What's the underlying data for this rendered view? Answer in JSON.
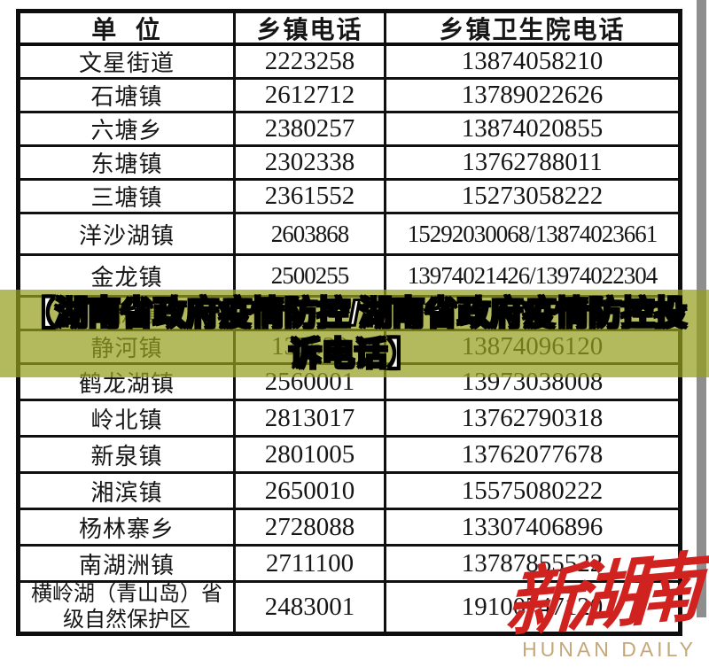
{
  "colors": {
    "overlay-bg": "rgba(150,158,30,0.72)",
    "logo-red": "#d0221f",
    "logo-gold": "#c5a878",
    "grey-strip": "#8e8e8e"
  },
  "table": {
    "headers": [
      "单  位",
      "乡镇电话",
      "乡镇卫生院电话"
    ],
    "rows": [
      {
        "unit": "文星街道",
        "town_phone": "2223258",
        "health_phone": "13874058210"
      },
      {
        "unit": "石塘镇",
        "town_phone": "2612712",
        "health_phone": "13789022626"
      },
      {
        "unit": "六塘乡",
        "town_phone": "2380257",
        "health_phone": "13874020855"
      },
      {
        "unit": "东塘镇",
        "town_phone": "2302338",
        "health_phone": "13762788011"
      },
      {
        "unit": "三塘镇",
        "town_phone": "2361552",
        "health_phone": "15273058222"
      },
      {
        "unit": "洋沙湖镇",
        "town_phone": "2603868",
        "health_phone": "15292030068/13874023661"
      },
      {
        "unit": "金龙镇",
        "town_phone": "2500255",
        "health_phone": "13974021426/13974022304"
      },
      {
        "unit": "樟树镇",
        "town_phone": "",
        "health_phone": ""
      },
      {
        "unit": "静河镇",
        "town_phone": "137620",
        "health_phone": "13874096120"
      },
      {
        "unit": "鹤龙湖镇",
        "town_phone": "2560001",
        "health_phone": "13973038008"
      },
      {
        "unit": "岭北镇",
        "town_phone": "2813017",
        "health_phone": "13762790318"
      },
      {
        "unit": "新泉镇",
        "town_phone": "2801005",
        "health_phone": "13762077678"
      },
      {
        "unit": "湘滨镇",
        "town_phone": "2650010",
        "health_phone": "15575080222"
      },
      {
        "unit": "杨林寨乡",
        "town_phone": "2728088",
        "health_phone": "13307406896"
      },
      {
        "unit": "南湖洲镇",
        "town_phone": "2711100",
        "health_phone": "13787855522"
      },
      {
        "unit": "横岭湖（青山岛）省级自然保护区",
        "town_phone": "2483001",
        "health_phone": "19100747120"
      }
    ]
  },
  "overlay": {
    "line1": "【湖南省政府疫情防控/湖南省政府疫情防控投",
    "line2": "诉电话】"
  },
  "logo": {
    "name": "新湖南",
    "subtitle": "HUNAN DAILY"
  }
}
